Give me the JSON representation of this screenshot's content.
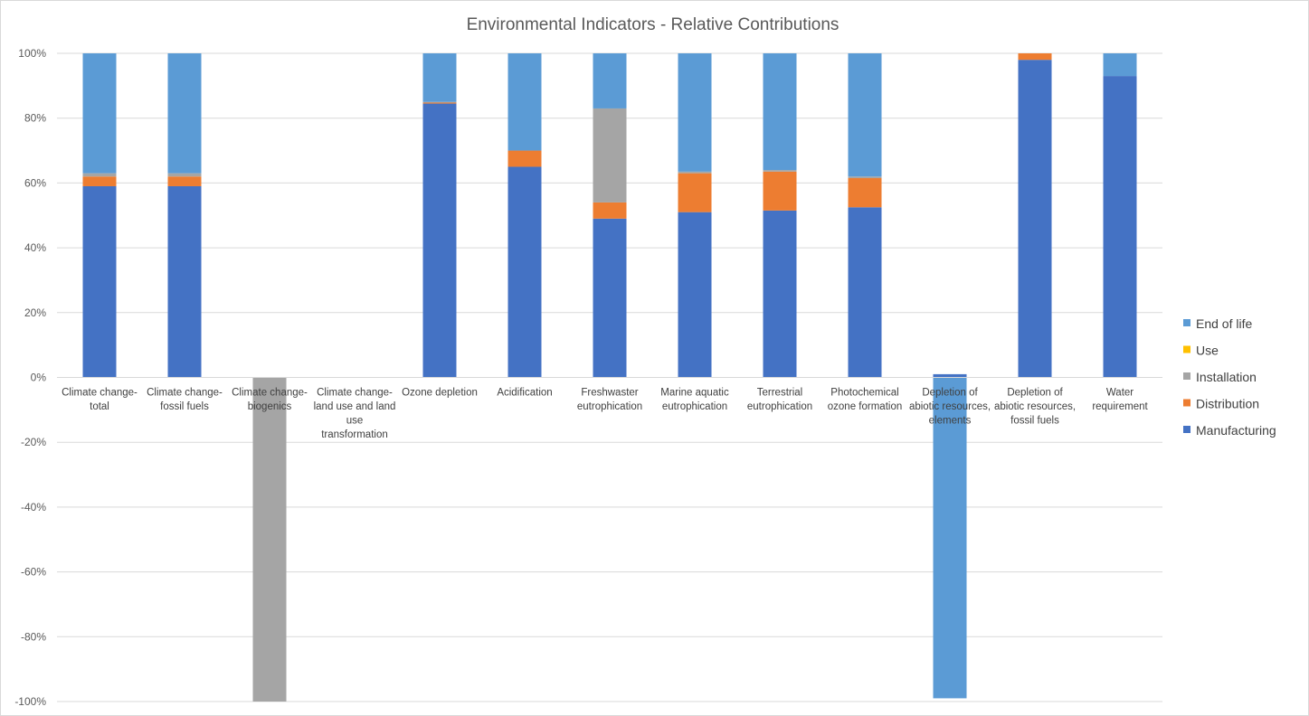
{
  "chart_data": {
    "type": "bar",
    "stacked": true,
    "title": "Environmental Indicators - Relative Contributions",
    "xlabel": "",
    "ylabel": "",
    "ylim": [
      -1.0,
      1.0
    ],
    "ytick_values": [
      1.0,
      0.8,
      0.6,
      0.4,
      0.2,
      0.0,
      -0.2,
      -0.4,
      -0.6,
      -0.8,
      -1.0
    ],
    "yticks": [
      "100%",
      "80%",
      "60%",
      "40%",
      "20%",
      "0%",
      "-20%",
      "-40%",
      "-60%",
      "-80%",
      "-100%"
    ],
    "grid": true,
    "legend_position": "right",
    "categories": [
      [
        "Climate change-",
        "total"
      ],
      [
        "Climate change-",
        "fossil fuels"
      ],
      [
        "Climate change-",
        "biogenics"
      ],
      [
        "Climate change-",
        "land use and land",
        "use",
        "transformation"
      ],
      [
        "Ozone depletion"
      ],
      [
        "Acidification"
      ],
      [
        "Freshwaster",
        "eutrophication"
      ],
      [
        "Marine aquatic",
        "eutrophication"
      ],
      [
        "Terrestrial",
        "eutrophication"
      ],
      [
        "Photochemical",
        "ozone formation"
      ],
      [
        "Depletion of",
        "abiotic resources,",
        "elements"
      ],
      [
        "Depletion of",
        "abiotic resources,",
        "fossil fuels"
      ],
      [
        "Water",
        "requirement"
      ]
    ],
    "series": [
      {
        "name": "Manufacturing",
        "color": "#4472C4",
        "values": [
          0.59,
          0.59,
          0.0,
          0.0,
          0.845,
          0.65,
          0.49,
          0.51,
          0.515,
          0.525,
          0.01,
          0.98,
          0.93
        ]
      },
      {
        "name": "Distribution",
        "color": "#ED7D31",
        "values": [
          0.03,
          0.03,
          0.0,
          0.0,
          0.003,
          0.05,
          0.05,
          0.12,
          0.12,
          0.09,
          0.0,
          0.02,
          0.0
        ]
      },
      {
        "name": "Installation",
        "color": "#A5A5A5",
        "values": [
          0.01,
          0.01,
          -1.0,
          0.0,
          0.002,
          0.0,
          0.29,
          0.005,
          0.005,
          0.005,
          0.0,
          0.0,
          0.0
        ]
      },
      {
        "name": "Use",
        "color": "#FFC000",
        "values": [
          0.0,
          0.0,
          0.0,
          0.0,
          0.0,
          0.0,
          0.0,
          0.0,
          0.0,
          0.0,
          0.0,
          0.0,
          0.0
        ]
      },
      {
        "name": "End of life",
        "color": "#5B9BD5",
        "values": [
          0.37,
          0.37,
          0.0,
          0.0,
          0.15,
          0.3,
          0.17,
          0.365,
          0.36,
          0.38,
          -0.99,
          0.0,
          0.07
        ]
      }
    ],
    "legend_order": [
      "End of life",
      "Use",
      "Installation",
      "Distribution",
      "Manufacturing"
    ]
  }
}
